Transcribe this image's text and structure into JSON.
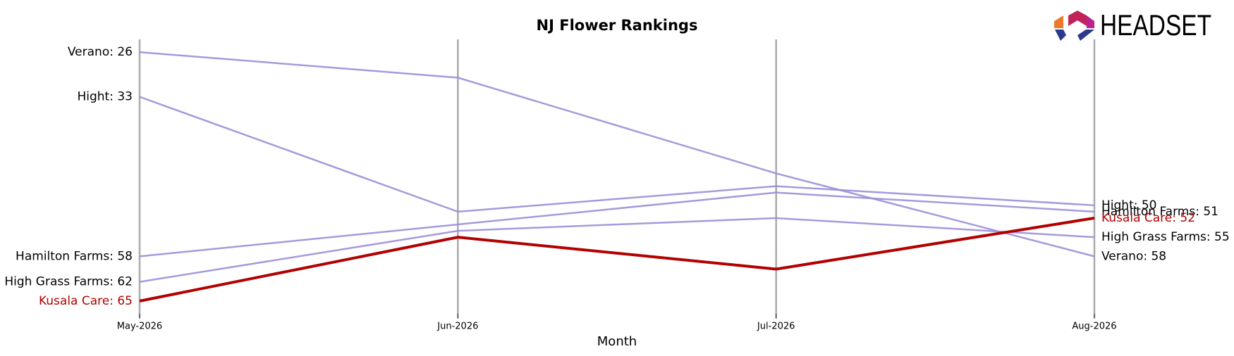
{
  "chart_data": {
    "type": "bump",
    "title": "NJ Flower Rankings",
    "xlabel": "Month",
    "logo": "HEADSET",
    "categories": [
      "May-2026",
      "Jun-2026",
      "Jul-2026",
      "Aug-2026"
    ],
    "ylim": [
      67,
      24
    ],
    "series": [
      {
        "name": "Verano",
        "color": "#9b8fd8",
        "values": [
          26,
          30,
          45,
          58
        ],
        "value_labels": [
          "Verano: 26",
          null,
          null,
          "Verano: 58"
        ]
      },
      {
        "name": "Hight",
        "color": "#9b8fd8",
        "values": [
          33,
          51,
          47,
          50
        ],
        "value_labels": [
          "Hight: 33",
          null,
          null,
          "Hight: 50"
        ]
      },
      {
        "name": "Hamilton Farms",
        "color": "#9b8fd8",
        "values": [
          58,
          53,
          48,
          51
        ],
        "value_labels": [
          "Hamilton Farms: 58",
          null,
          null,
          "Hamilton Farms: 51"
        ]
      },
      {
        "name": "High Grass Farms",
        "color": "#9b8fd8",
        "values": [
          62,
          54,
          52,
          55
        ],
        "value_labels": [
          "High Grass Farms: 62",
          null,
          null,
          "High Grass Farms: 55"
        ]
      },
      {
        "name": "Kusala Care",
        "color": "#b30000",
        "highlight": true,
        "values": [
          65,
          55,
          60,
          52
        ],
        "value_labels": [
          "Kusala Care: 65",
          null,
          null,
          "Kusala Care: 52"
        ]
      }
    ]
  }
}
